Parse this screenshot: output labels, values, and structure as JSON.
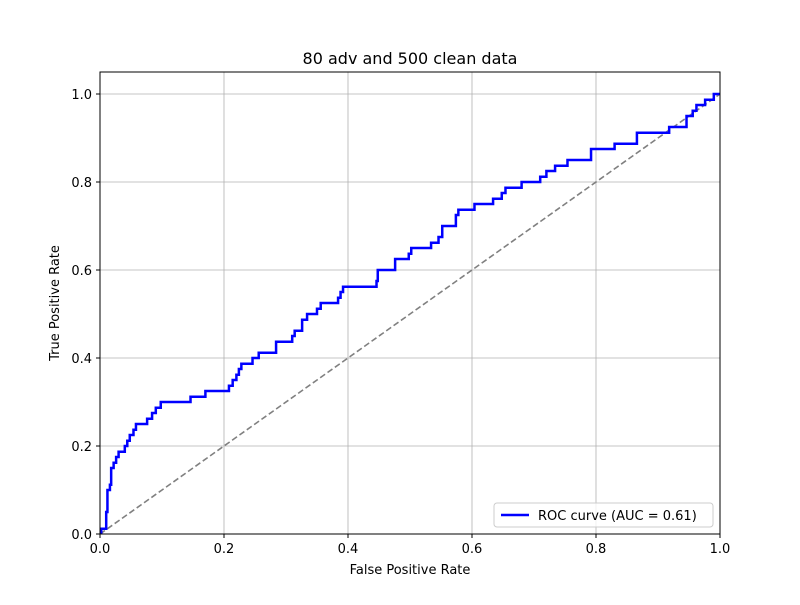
{
  "chart_data": {
    "type": "line",
    "title": "80 adv and 500 clean data",
    "xlabel": "False Positive Rate",
    "ylabel": "True Positive Rate",
    "xlim": [
      0,
      1
    ],
    "ylim": [
      0,
      1.05
    ],
    "grid": true,
    "legend_position": "lower-right",
    "x_ticks": [
      "0.0",
      "0.2",
      "0.4",
      "0.6",
      "0.8",
      "1.0"
    ],
    "y_ticks": [
      "0.0",
      "0.2",
      "0.4",
      "0.6",
      "0.8",
      "1.0"
    ],
    "series": [
      {
        "name": "ROC curve (AUC = 0.61)",
        "color": "#0000ff",
        "style": "solid",
        "points": [
          [
            0.0,
            0.0
          ],
          [
            0.002,
            0.0
          ],
          [
            0.002,
            0.012
          ],
          [
            0.01,
            0.012
          ],
          [
            0.01,
            0.05
          ],
          [
            0.012,
            0.05
          ],
          [
            0.012,
            0.1
          ],
          [
            0.016,
            0.1
          ],
          [
            0.016,
            0.112
          ],
          [
            0.018,
            0.112
          ],
          [
            0.018,
            0.15
          ],
          [
            0.022,
            0.15
          ],
          [
            0.022,
            0.162
          ],
          [
            0.026,
            0.162
          ],
          [
            0.026,
            0.175
          ],
          [
            0.03,
            0.175
          ],
          [
            0.03,
            0.187
          ],
          [
            0.04,
            0.187
          ],
          [
            0.04,
            0.2
          ],
          [
            0.044,
            0.2
          ],
          [
            0.044,
            0.212
          ],
          [
            0.048,
            0.212
          ],
          [
            0.048,
            0.225
          ],
          [
            0.054,
            0.225
          ],
          [
            0.054,
            0.237
          ],
          [
            0.058,
            0.237
          ],
          [
            0.058,
            0.25
          ],
          [
            0.076,
            0.25
          ],
          [
            0.076,
            0.262
          ],
          [
            0.084,
            0.262
          ],
          [
            0.084,
            0.275
          ],
          [
            0.09,
            0.275
          ],
          [
            0.09,
            0.287
          ],
          [
            0.098,
            0.287
          ],
          [
            0.098,
            0.3
          ],
          [
            0.146,
            0.3
          ],
          [
            0.146,
            0.312
          ],
          [
            0.17,
            0.312
          ],
          [
            0.17,
            0.325
          ],
          [
            0.208,
            0.325
          ],
          [
            0.208,
            0.337
          ],
          [
            0.214,
            0.337
          ],
          [
            0.214,
            0.35
          ],
          [
            0.22,
            0.35
          ],
          [
            0.22,
            0.362
          ],
          [
            0.224,
            0.362
          ],
          [
            0.224,
            0.375
          ],
          [
            0.228,
            0.375
          ],
          [
            0.228,
            0.387
          ],
          [
            0.246,
            0.387
          ],
          [
            0.246,
            0.4
          ],
          [
            0.256,
            0.4
          ],
          [
            0.256,
            0.412
          ],
          [
            0.284,
            0.412
          ],
          [
            0.284,
            0.437
          ],
          [
            0.31,
            0.437
          ],
          [
            0.31,
            0.45
          ],
          [
            0.314,
            0.45
          ],
          [
            0.314,
            0.462
          ],
          [
            0.326,
            0.462
          ],
          [
            0.326,
            0.487
          ],
          [
            0.334,
            0.487
          ],
          [
            0.334,
            0.5
          ],
          [
            0.35,
            0.5
          ],
          [
            0.35,
            0.512
          ],
          [
            0.356,
            0.512
          ],
          [
            0.356,
            0.525
          ],
          [
            0.384,
            0.525
          ],
          [
            0.384,
            0.537
          ],
          [
            0.388,
            0.537
          ],
          [
            0.388,
            0.55
          ],
          [
            0.392,
            0.55
          ],
          [
            0.392,
            0.562
          ],
          [
            0.446,
            0.562
          ],
          [
            0.446,
            0.575
          ],
          [
            0.448,
            0.575
          ],
          [
            0.448,
            0.6
          ],
          [
            0.476,
            0.6
          ],
          [
            0.476,
            0.625
          ],
          [
            0.498,
            0.625
          ],
          [
            0.498,
            0.637
          ],
          [
            0.502,
            0.637
          ],
          [
            0.502,
            0.65
          ],
          [
            0.534,
            0.65
          ],
          [
            0.534,
            0.662
          ],
          [
            0.546,
            0.662
          ],
          [
            0.546,
            0.675
          ],
          [
            0.552,
            0.675
          ],
          [
            0.552,
            0.7
          ],
          [
            0.574,
            0.7
          ],
          [
            0.574,
            0.725
          ],
          [
            0.578,
            0.725
          ],
          [
            0.578,
            0.737
          ],
          [
            0.604,
            0.737
          ],
          [
            0.604,
            0.75
          ],
          [
            0.634,
            0.75
          ],
          [
            0.634,
            0.762
          ],
          [
            0.648,
            0.762
          ],
          [
            0.648,
            0.775
          ],
          [
            0.654,
            0.775
          ],
          [
            0.654,
            0.787
          ],
          [
            0.68,
            0.787
          ],
          [
            0.68,
            0.8
          ],
          [
            0.71,
            0.8
          ],
          [
            0.71,
            0.812
          ],
          [
            0.72,
            0.812
          ],
          [
            0.72,
            0.825
          ],
          [
            0.734,
            0.825
          ],
          [
            0.734,
            0.837
          ],
          [
            0.754,
            0.837
          ],
          [
            0.754,
            0.85
          ],
          [
            0.792,
            0.85
          ],
          [
            0.792,
            0.875
          ],
          [
            0.83,
            0.875
          ],
          [
            0.83,
            0.887
          ],
          [
            0.866,
            0.887
          ],
          [
            0.866,
            0.912
          ],
          [
            0.918,
            0.912
          ],
          [
            0.918,
            0.925
          ],
          [
            0.946,
            0.925
          ],
          [
            0.946,
            0.95
          ],
          [
            0.956,
            0.95
          ],
          [
            0.956,
            0.962
          ],
          [
            0.962,
            0.962
          ],
          [
            0.962,
            0.975
          ],
          [
            0.976,
            0.975
          ],
          [
            0.976,
            0.987
          ],
          [
            0.99,
            0.987
          ],
          [
            0.99,
            1.0
          ],
          [
            1.0,
            1.0
          ]
        ]
      },
      {
        "name": "",
        "color": "#808080",
        "style": "dashed",
        "points": [
          [
            0,
            0
          ],
          [
            1,
            1
          ]
        ]
      }
    ]
  }
}
